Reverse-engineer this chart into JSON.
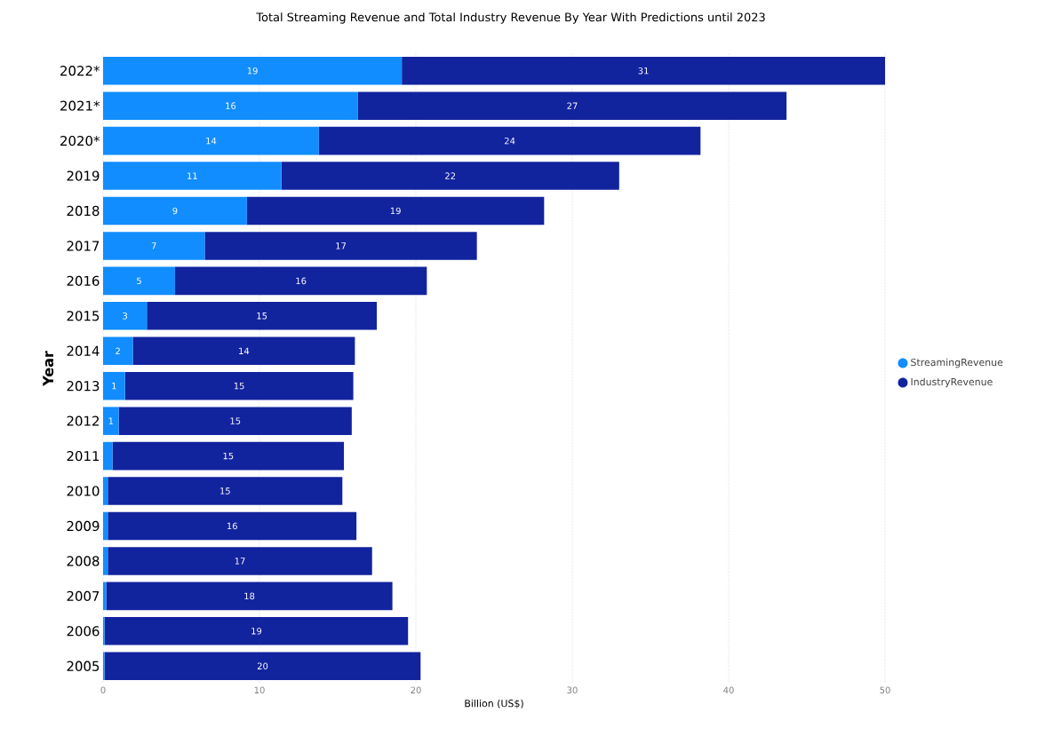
{
  "chart_data": {
    "type": "bar",
    "orientation": "horizontal",
    "stacked": true,
    "title": "Total Streaming Revenue and Total Industry Revenue By Year With Predictions until 2023",
    "xlabel": "Billion (US$)",
    "ylabel": "Year",
    "categories": [
      "2022*",
      "2021*",
      "2020*",
      "2019",
      "2018",
      "2017",
      "2016",
      "2015",
      "2014",
      "2013",
      "2012",
      "2011",
      "2010",
      "2009",
      "2008",
      "2007",
      "2006",
      "2005"
    ],
    "series": [
      {
        "name": "StreamingRevenue",
        "color": "#118dff",
        "values": [
          19.1,
          16.3,
          13.8,
          11.4,
          9.2,
          6.5,
          4.6,
          2.8,
          1.9,
          1.4,
          1.0,
          0.6,
          0.3,
          0.3,
          0.3,
          0.2,
          0.1,
          0.1
        ],
        "value_labels": [
          "19",
          "16",
          "14",
          "11",
          "9",
          "7",
          "5",
          "3",
          "2",
          "1",
          "1",
          null,
          null,
          null,
          null,
          null,
          null,
          null
        ]
      },
      {
        "name": "IndustryRevenue",
        "color": "#12239e",
        "values": [
          30.9,
          27.4,
          24.4,
          21.6,
          19.0,
          17.4,
          16.1,
          14.7,
          14.2,
          14.6,
          14.9,
          14.8,
          15.0,
          15.9,
          16.9,
          18.3,
          19.4,
          20.2
        ],
        "value_labels": [
          "31",
          "27",
          "24",
          "22",
          "19",
          "17",
          "16",
          "15",
          "14",
          "15",
          "15",
          "15",
          "15",
          "16",
          "17",
          "18",
          "19",
          "20"
        ]
      }
    ],
    "xlim": [
      0,
      50
    ],
    "xticks": [
      0,
      10,
      20,
      30,
      40,
      50
    ],
    "grid": "x",
    "legend": "right"
  }
}
